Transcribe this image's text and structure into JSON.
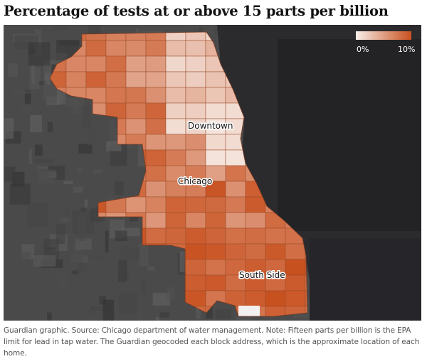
{
  "title": "Percentage of tests at or above 15 parts per billion",
  "legend": {
    "min_label": "0%",
    "max_label": "10%",
    "color_low": "#f7eee9",
    "color_high": "#c8501f"
  },
  "map_labels": {
    "downtown": "Downtown",
    "chicago": "Chicago",
    "south_side": "South Side"
  },
  "caption": "Guardian graphic. Source: Chicago department of water management. Note: Fifteen parts per billion is the EPA limit for lead in tap water. The Guardian geocoded each block address, which is the approximate location of each home.",
  "colors": {
    "land": "#4a4a4a",
    "lake": "#2b2b2e"
  }
}
